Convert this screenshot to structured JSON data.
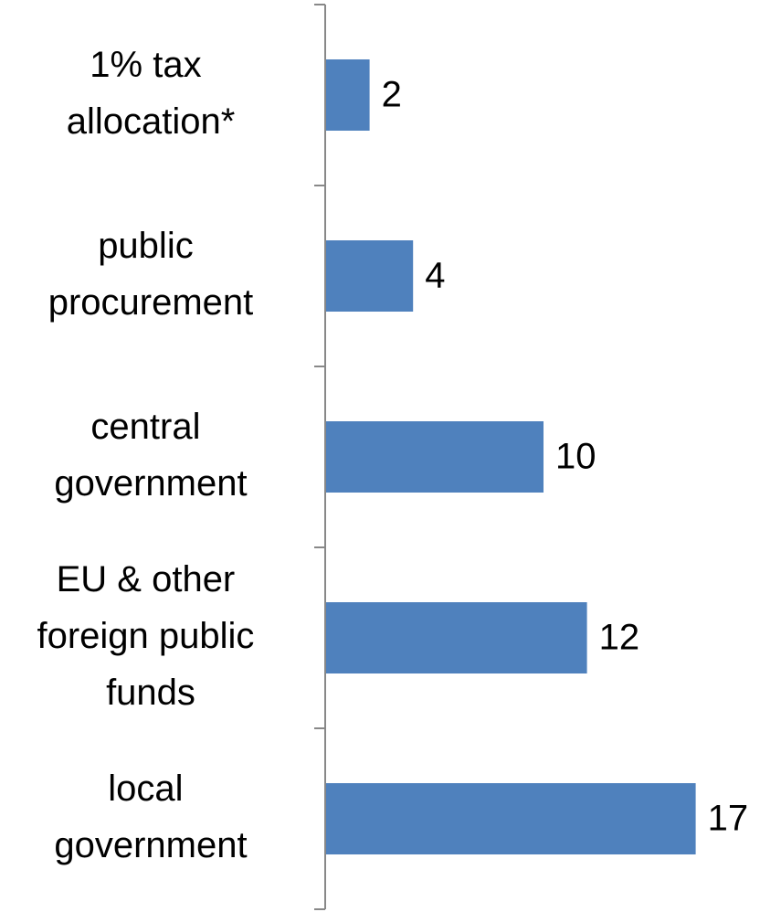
{
  "chart_data": {
    "type": "hbar",
    "categories": [
      "1% tax allocation*",
      "public procurement",
      "central government",
      "EU & other foreign public funds",
      "local government"
    ],
    "values": [
      2,
      4,
      10,
      12,
      17
    ],
    "color": "#4f81bd"
  }
}
